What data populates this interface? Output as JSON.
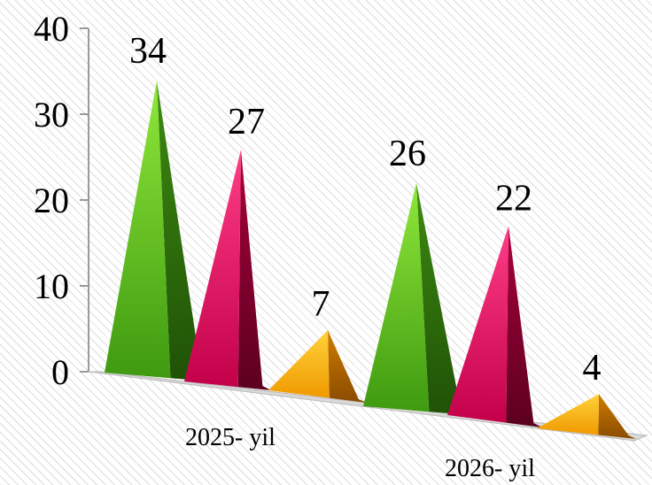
{
  "chart_data": {
    "type": "bar",
    "shape": "pyramid",
    "categories": [
      "2025- yil",
      "2026- yil"
    ],
    "series": [
      {
        "values": [
          34,
          26
        ],
        "color": "#5cc21b"
      },
      {
        "values": [
          27,
          22
        ],
        "color": "#e0105a"
      },
      {
        "values": [
          7,
          4
        ],
        "color": "#ffb000"
      }
    ],
    "yticks": [
      0,
      10,
      20,
      30,
      40
    ],
    "ylim": [
      0,
      40
    ],
    "title": "",
    "xlabel": "",
    "ylabel": "",
    "grid": false
  }
}
